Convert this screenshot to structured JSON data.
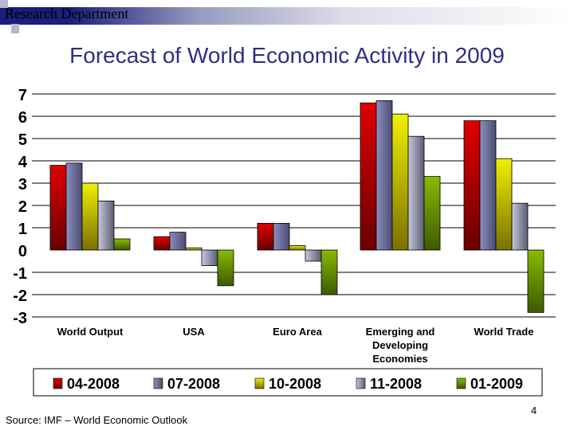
{
  "header": {
    "department": "Research Department"
  },
  "footer": {
    "source": "Source: IMF – World Economic Outlook",
    "page_number": "4"
  },
  "chart_data": {
    "type": "bar",
    "title": "Forecast of World Economic Activity in 2009",
    "categories": [
      "World Output",
      "USA",
      "Euro Area",
      "Emerging and Developing Economies",
      "World Trade"
    ],
    "category_lines": [
      [
        "World Output"
      ],
      [
        "USA"
      ],
      [
        "Euro Area"
      ],
      [
        "Emerging and",
        "Developing",
        "Economies"
      ],
      [
        "World Trade"
      ]
    ],
    "ylim": [
      -3,
      7
    ],
    "yticks": [
      "7",
      "6",
      "5",
      "4",
      "3",
      "2",
      "1",
      "0",
      "-1",
      "-2",
      "-3"
    ],
    "grid": true,
    "legend_position": "bottom",
    "series": [
      {
        "name": "04-2008",
        "color": "#e00000",
        "values": [
          3.8,
          0.6,
          1.2,
          6.6,
          5.8
        ]
      },
      {
        "name": "07-2008",
        "color": "#8c8fbf",
        "values": [
          3.9,
          0.8,
          1.2,
          6.7,
          5.8
        ]
      },
      {
        "name": "10-2008",
        "color": "#f0f000",
        "values": [
          3.0,
          0.1,
          0.2,
          6.1,
          4.1
        ]
      },
      {
        "name": "11-2008",
        "color": "#c8c9dc",
        "values": [
          2.2,
          -0.7,
          -0.5,
          5.1,
          2.1
        ]
      },
      {
        "name": "01-2009",
        "color": "#88bb00",
        "values": [
          0.5,
          -1.6,
          -2.0,
          3.3,
          -2.8
        ]
      }
    ]
  }
}
